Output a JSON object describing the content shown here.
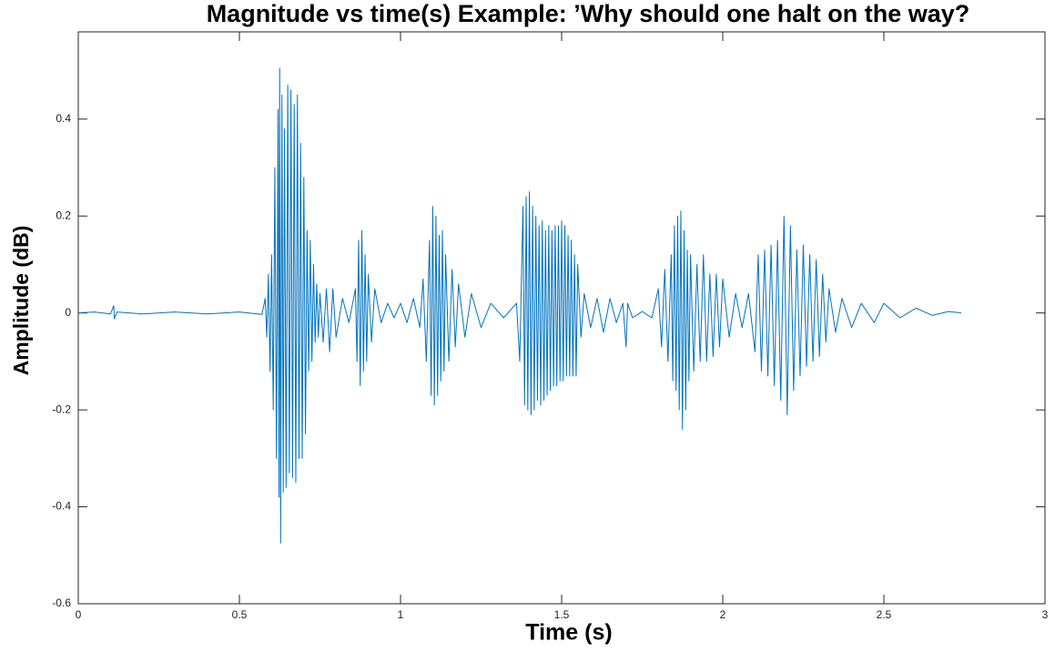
{
  "chart_data": {
    "type": "line",
    "title": "Magnitude vs time(s) Example: ’Why should one halt on the way?",
    "xlabel": "Time (s)",
    "ylabel": "Amplitude (dB)",
    "color": "#0072bd",
    "xlim": [
      0,
      3
    ],
    "ylim": [
      -0.6,
      0.58
    ],
    "xticks": [
      0,
      0.5,
      1,
      1.5,
      2,
      2.5,
      3
    ],
    "yticks": [
      -0.6,
      -0.4,
      -0.2,
      0,
      0.2,
      0.4
    ],
    "x": [
      0,
      0.05,
      0.1,
      0.11,
      0.112,
      0.12,
      0.2,
      0.3,
      0.4,
      0.5,
      0.57,
      0.58,
      0.585,
      0.59,
      0.595,
      0.6,
      0.605,
      0.61,
      0.615,
      0.62,
      0.623,
      0.625,
      0.628,
      0.632,
      0.636,
      0.64,
      0.645,
      0.65,
      0.655,
      0.66,
      0.665,
      0.67,
      0.675,
      0.68,
      0.685,
      0.69,
      0.695,
      0.7,
      0.705,
      0.71,
      0.715,
      0.72,
      0.725,
      0.73,
      0.735,
      0.74,
      0.745,
      0.75,
      0.76,
      0.77,
      0.78,
      0.79,
      0.8,
      0.82,
      0.84,
      0.86,
      0.865,
      0.87,
      0.875,
      0.88,
      0.885,
      0.89,
      0.895,
      0.9,
      0.91,
      0.92,
      0.94,
      0.96,
      0.98,
      1.0,
      1.02,
      1.04,
      1.06,
      1.07,
      1.08,
      1.09,
      1.095,
      1.1,
      1.105,
      1.11,
      1.115,
      1.12,
      1.125,
      1.13,
      1.135,
      1.14,
      1.15,
      1.16,
      1.17,
      1.18,
      1.2,
      1.22,
      1.25,
      1.28,
      1.32,
      1.36,
      1.37,
      1.38,
      1.385,
      1.39,
      1.395,
      1.4,
      1.405,
      1.41,
      1.415,
      1.42,
      1.425,
      1.43,
      1.435,
      1.44,
      1.445,
      1.45,
      1.455,
      1.46,
      1.465,
      1.47,
      1.475,
      1.48,
      1.485,
      1.49,
      1.495,
      1.5,
      1.505,
      1.51,
      1.515,
      1.52,
      1.525,
      1.53,
      1.535,
      1.54,
      1.545,
      1.55,
      1.56,
      1.57,
      1.59,
      1.61,
      1.63,
      1.65,
      1.67,
      1.69,
      1.7,
      1.705,
      1.72,
      1.75,
      1.78,
      1.8,
      1.81,
      1.82,
      1.83,
      1.84,
      1.845,
      1.85,
      1.855,
      1.86,
      1.865,
      1.87,
      1.875,
      1.88,
      1.885,
      1.89,
      1.895,
      1.9,
      1.91,
      1.92,
      1.93,
      1.94,
      1.95,
      1.96,
      1.97,
      1.98,
      1.99,
      2.0,
      2.02,
      2.04,
      2.06,
      2.08,
      2.1,
      2.11,
      2.12,
      2.13,
      2.14,
      2.15,
      2.16,
      2.17,
      2.18,
      2.19,
      2.2,
      2.21,
      2.22,
      2.23,
      2.24,
      2.25,
      2.26,
      2.27,
      2.28,
      2.29,
      2.3,
      2.31,
      2.32,
      2.33,
      2.35,
      2.37,
      2.4,
      2.43,
      2.47,
      2.5,
      2.55,
      2.6,
      2.65,
      2.7,
      2.74
    ],
    "values": [
      0,
      0.002,
      -0.002,
      0.015,
      -0.012,
      0.002,
      -0.002,
      0.002,
      -0.002,
      0.002,
      -0.003,
      0.03,
      -0.05,
      0.08,
      -0.12,
      0.12,
      -0.2,
      0.3,
      -0.3,
      0.42,
      -0.38,
      0.505,
      -0.475,
      0.45,
      -0.37,
      0.38,
      -0.36,
      0.47,
      -0.33,
      0.46,
      -0.34,
      0.43,
      -0.35,
      0.45,
      -0.3,
      0.35,
      -0.3,
      0.28,
      -0.25,
      0.17,
      -0.12,
      0.15,
      -0.1,
      0.1,
      -0.06,
      0.06,
      -0.05,
      0.04,
      -0.06,
      0.05,
      -0.08,
      0.05,
      -0.05,
      0.03,
      -0.02,
      0.05,
      -0.1,
      0.15,
      -0.15,
      0.17,
      -0.12,
      0.12,
      -0.1,
      0.08,
      -0.06,
      0.05,
      -0.02,
      0.02,
      -0.01,
      0.02,
      -0.02,
      0.03,
      -0.03,
      0.07,
      -0.1,
      0.15,
      -0.17,
      0.22,
      -0.19,
      0.2,
      -0.17,
      0.16,
      -0.14,
      0.17,
      -0.12,
      0.12,
      -0.1,
      0.09,
      -0.07,
      0.06,
      -0.05,
      0.04,
      -0.03,
      0.02,
      -0.01,
      0.02,
      -0.1,
      0.22,
      -0.19,
      0.24,
      -0.2,
      0.25,
      -0.21,
      0.22,
      -0.2,
      0.2,
      -0.18,
      0.18,
      -0.19,
      0.19,
      -0.18,
      0.17,
      -0.17,
      0.18,
      -0.16,
      0.17,
      -0.15,
      0.18,
      -0.15,
      0.18,
      -0.14,
      0.19,
      -0.14,
      0.18,
      -0.13,
      0.16,
      -0.13,
      0.15,
      -0.13,
      0.12,
      -0.13,
      0.1,
      -0.05,
      0.04,
      -0.03,
      0.03,
      -0.04,
      0.03,
      -0.02,
      0.02,
      -0.07,
      0.02,
      -0.01,
      0.003,
      -0.01,
      0.05,
      -0.07,
      0.09,
      -0.1,
      0.12,
      -0.14,
      0.18,
      -0.16,
      0.2,
      -0.2,
      0.21,
      -0.24,
      0.17,
      -0.2,
      0.13,
      -0.14,
      0.12,
      -0.12,
      0.1,
      -0.1,
      0.12,
      -0.1,
      0.08,
      -0.09,
      0.08,
      -0.07,
      0.07,
      -0.05,
      0.04,
      -0.03,
      0.04,
      -0.08,
      0.12,
      -0.12,
      0.13,
      -0.13,
      0.14,
      -0.15,
      0.15,
      -0.18,
      0.2,
      -0.21,
      0.18,
      -0.16,
      0.13,
      -0.13,
      0.14,
      -0.11,
      0.12,
      -0.1,
      0.11,
      -0.09,
      0.08,
      -0.06,
      0.05,
      -0.04,
      0.03,
      -0.03,
      0.02,
      -0.02,
      0.02,
      -0.01,
      0.01,
      -0.005,
      0.003,
      0
    ]
  }
}
